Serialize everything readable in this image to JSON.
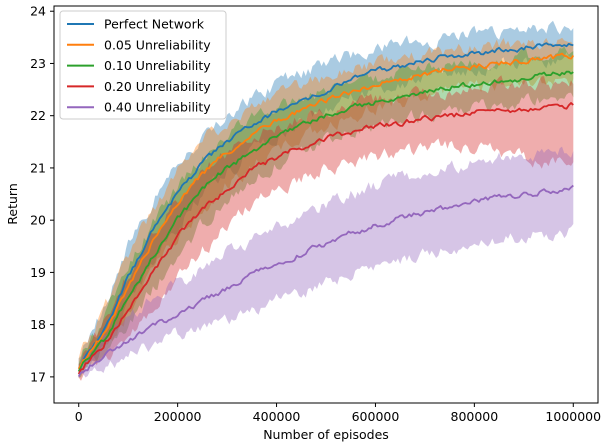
{
  "chart_data": {
    "type": "line",
    "title": "",
    "xlabel": "Number of episodes",
    "ylabel": "Return",
    "xlim": [
      -50000,
      1050000
    ],
    "ylim": [
      16.5,
      24.1
    ],
    "xticks": [
      0,
      200000,
      400000,
      600000,
      800000,
      1000000
    ],
    "xtick_labels": [
      "0",
      "200000",
      "400000",
      "600000",
      "800000",
      "1000000"
    ],
    "yticks": [
      17,
      18,
      19,
      20,
      21,
      22,
      23,
      24
    ],
    "ytick_labels": [
      "17",
      "18",
      "19",
      "20",
      "21",
      "22",
      "23",
      "24"
    ],
    "grid": false,
    "legend_position": "top-left",
    "shaded_band": "min-max range",
    "x": [
      0,
      50000,
      100000,
      150000,
      200000,
      250000,
      300000,
      350000,
      400000,
      450000,
      500000,
      550000,
      600000,
      650000,
      700000,
      750000,
      800000,
      850000,
      900000,
      950000,
      1000000
    ],
    "series": [
      {
        "name": "Perfect Network",
        "color": "#1f77b4",
        "values": [
          17.2,
          17.9,
          18.9,
          19.8,
          20.5,
          21.1,
          21.5,
          21.8,
          22.1,
          22.3,
          22.5,
          22.7,
          22.85,
          22.95,
          23.05,
          23.15,
          23.2,
          23.25,
          23.3,
          23.35,
          23.4
        ],
        "lower": [
          17.1,
          17.6,
          18.4,
          19.2,
          19.9,
          20.5,
          20.9,
          21.3,
          21.6,
          21.9,
          22.1,
          22.3,
          22.5,
          22.6,
          22.75,
          22.85,
          22.9,
          22.95,
          23.0,
          23.05,
          23.1
        ],
        "upper": [
          17.4,
          18.3,
          19.5,
          20.4,
          21.1,
          21.6,
          22.0,
          22.3,
          22.6,
          22.8,
          23.0,
          23.15,
          23.3,
          23.4,
          23.45,
          23.5,
          23.55,
          23.6,
          23.65,
          23.7,
          23.75
        ]
      },
      {
        "name": "0.05 Unreliability",
        "color": "#ff7f0e",
        "values": [
          17.2,
          17.8,
          18.7,
          19.6,
          20.3,
          20.9,
          21.3,
          21.6,
          21.9,
          22.1,
          22.3,
          22.45,
          22.6,
          22.7,
          22.8,
          22.9,
          22.95,
          23.0,
          23.05,
          23.1,
          23.15
        ],
        "lower": [
          17.1,
          17.5,
          18.2,
          19.0,
          19.6,
          20.2,
          20.7,
          21.0,
          21.4,
          21.6,
          21.8,
          22.0,
          22.15,
          22.3,
          22.4,
          22.5,
          22.55,
          22.6,
          22.65,
          22.7,
          22.75
        ],
        "upper": [
          17.4,
          18.2,
          19.3,
          20.2,
          20.9,
          21.5,
          21.9,
          22.2,
          22.4,
          22.6,
          22.75,
          22.9,
          23.0,
          23.1,
          23.2,
          23.25,
          23.3,
          23.35,
          23.4,
          23.45,
          23.5
        ]
      },
      {
        "name": "0.10 Unreliability",
        "color": "#2ca02c",
        "values": [
          17.15,
          17.7,
          18.5,
          19.3,
          20.0,
          20.6,
          21.0,
          21.3,
          21.6,
          21.8,
          22.0,
          22.15,
          22.25,
          22.35,
          22.45,
          22.55,
          22.6,
          22.65,
          22.7,
          22.8,
          22.85
        ],
        "lower": [
          17.05,
          17.4,
          18.0,
          18.7,
          19.3,
          19.9,
          20.4,
          20.8,
          21.1,
          21.3,
          21.5,
          21.7,
          21.8,
          21.9,
          22.0,
          22.1,
          22.15,
          22.2,
          22.25,
          22.35,
          22.4
        ],
        "upper": [
          17.3,
          18.1,
          19.1,
          19.9,
          20.6,
          21.2,
          21.6,
          21.9,
          22.1,
          22.3,
          22.5,
          22.6,
          22.7,
          22.8,
          22.9,
          22.95,
          23.0,
          23.05,
          23.1,
          23.15,
          23.2
        ]
      },
      {
        "name": "0.20 Unreliability",
        "color": "#d62728",
        "values": [
          17.1,
          17.6,
          18.3,
          19.0,
          19.7,
          20.2,
          20.6,
          21.0,
          21.2,
          21.4,
          21.55,
          21.7,
          21.8,
          21.85,
          21.95,
          22.0,
          22.05,
          22.1,
          22.1,
          22.15,
          22.2
        ],
        "lower": [
          17.0,
          17.3,
          17.8,
          18.3,
          18.9,
          19.4,
          19.9,
          20.3,
          20.6,
          20.8,
          21.0,
          21.1,
          21.2,
          21.3,
          21.35,
          21.4,
          21.4,
          21.3,
          21.2,
          21.1,
          21.2
        ],
        "upper": [
          17.3,
          18.0,
          18.9,
          19.7,
          20.4,
          20.9,
          21.3,
          21.6,
          21.8,
          22.0,
          22.1,
          22.2,
          22.3,
          22.35,
          22.4,
          22.45,
          22.5,
          22.55,
          22.6,
          22.6,
          22.65
        ]
      },
      {
        "name": "0.40 Unreliability",
        "color": "#9467bd",
        "values": [
          17.05,
          17.4,
          17.7,
          17.95,
          18.2,
          18.45,
          18.7,
          18.95,
          19.15,
          19.35,
          19.55,
          19.75,
          19.9,
          20.05,
          20.15,
          20.25,
          20.35,
          20.45,
          20.5,
          20.55,
          20.6
        ],
        "lower": [
          16.95,
          17.2,
          17.4,
          17.6,
          17.8,
          17.9,
          18.1,
          18.3,
          18.45,
          18.6,
          18.8,
          18.95,
          19.1,
          19.25,
          19.35,
          19.45,
          19.55,
          19.65,
          19.7,
          19.75,
          19.8
        ],
        "upper": [
          17.2,
          17.7,
          18.1,
          18.5,
          18.8,
          19.1,
          19.4,
          19.65,
          19.9,
          20.1,
          20.3,
          20.5,
          20.65,
          20.8,
          20.9,
          21.0,
          21.1,
          21.2,
          21.25,
          21.3,
          21.35
        ]
      }
    ]
  }
}
